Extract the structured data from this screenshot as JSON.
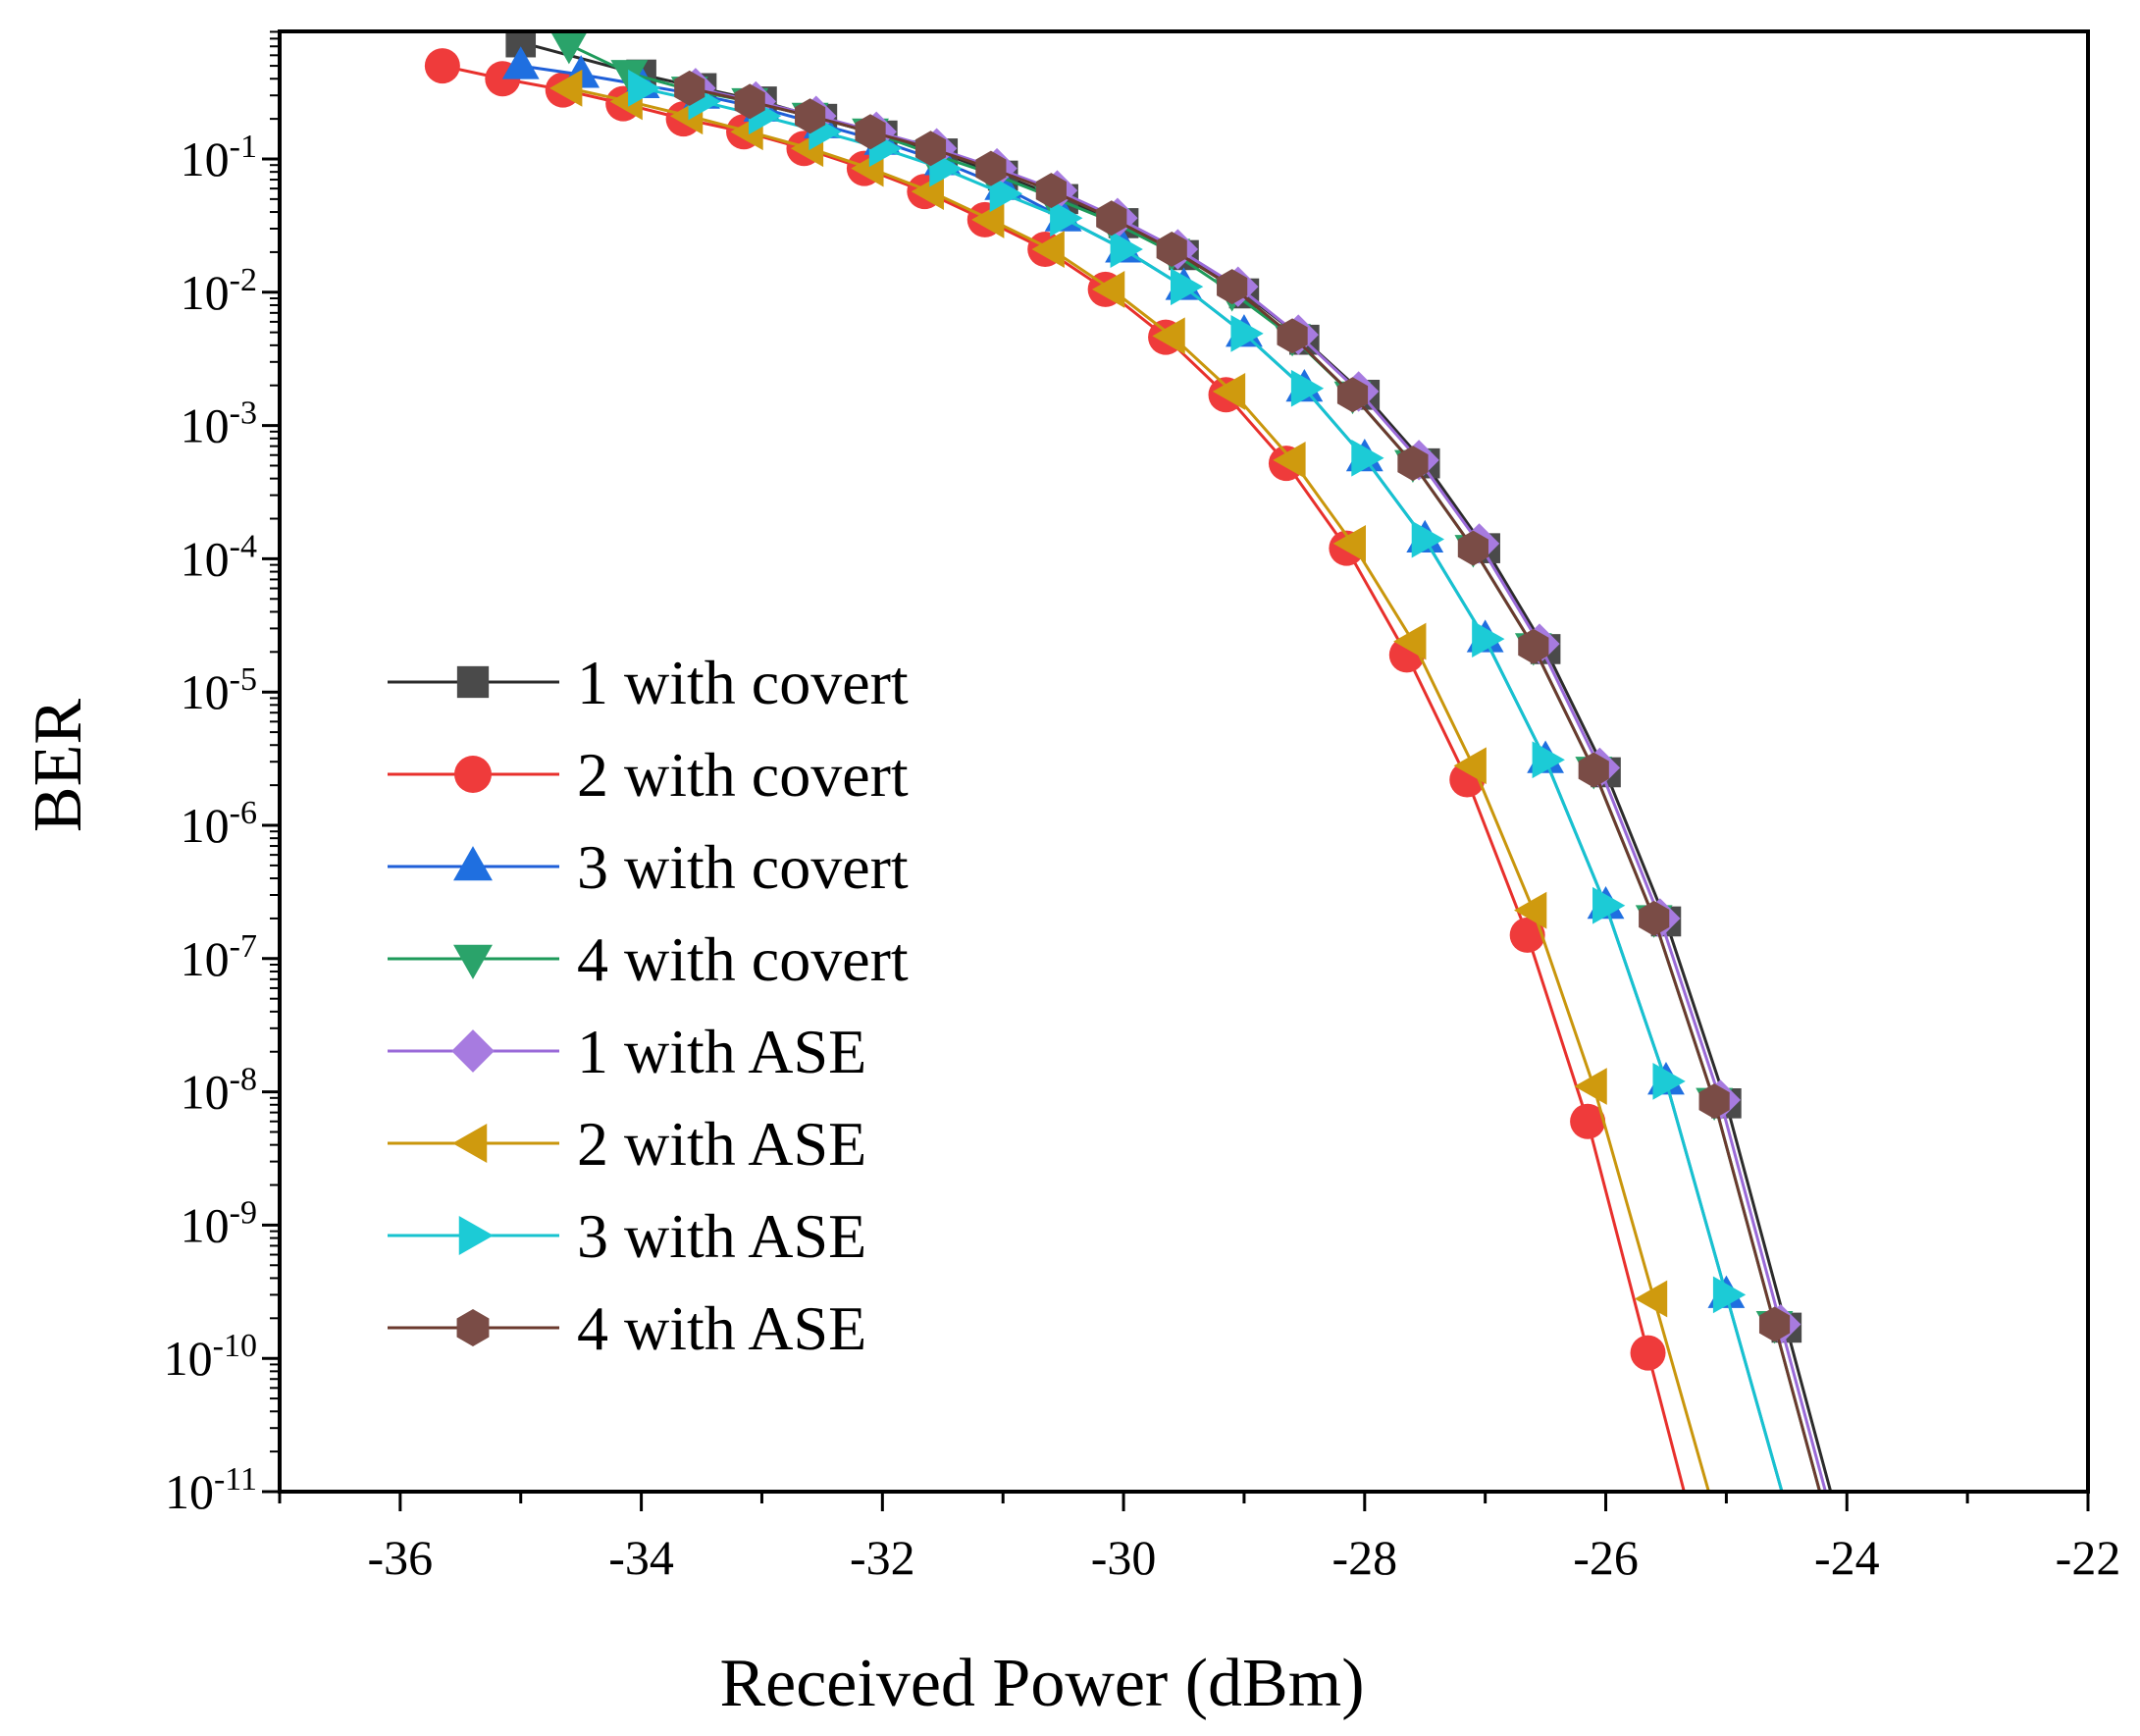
{
  "chart_data": {
    "type": "line",
    "title": "",
    "xlabel": "Received Power (dBm)",
    "ylabel": "BER",
    "xlim": [
      -37,
      -22
    ],
    "ylim_exponent": [
      -11,
      0
    ],
    "yscale": "log",
    "xticks": [
      -36,
      -34,
      -32,
      -30,
      -28,
      -26,
      -24,
      -22
    ],
    "xtick_labels": [
      "-36",
      "-34",
      "-32",
      "-30",
      "-28",
      "-26",
      "-24",
      "-22"
    ],
    "ytick_labels": [
      {
        "base": "10",
        "exp": "-1"
      },
      {
        "base": "10",
        "exp": "-2"
      },
      {
        "base": "10",
        "exp": "-3"
      },
      {
        "base": "10",
        "exp": "-4"
      },
      {
        "base": "10",
        "exp": "-5"
      },
      {
        "base": "10",
        "exp": "-6"
      },
      {
        "base": "10",
        "exp": "-7"
      },
      {
        "base": "10",
        "exp": "-8"
      },
      {
        "base": "10",
        "exp": "-9"
      },
      {
        "base": "10",
        "exp": "-10"
      },
      {
        "base": "10",
        "exp": "-11"
      }
    ],
    "legend_position": "left-center",
    "series": [
      {
        "name": "1 with covert",
        "color": "#2b2b2b",
        "marker": "square",
        "marker_color": "#4a4a4a",
        "x": [
          -35,
          -34,
          -33.5,
          -33,
          -32.5,
          -32,
          -31.5,
          -31,
          -30.5,
          -30,
          -29.5,
          -29,
          -28.5,
          -28,
          -27.5,
          -27,
          -26.5,
          -26,
          -25.5,
          -25,
          -24.5
        ],
        "y": [
          0.75,
          0.43,
          0.34,
          0.27,
          0.2,
          0.15,
          0.11,
          0.075,
          0.05,
          0.033,
          0.019,
          0.0098,
          0.0044,
          0.0017,
          0.00052,
          0.00012,
          2.1e-05,
          2.5e-06,
          1.9e-07,
          8.2e-09,
          1.7e-10
        ]
      },
      {
        "name": "2 with covert",
        "color": "#e8302c",
        "marker": "circle",
        "marker_color": "#ef3b3b",
        "x": [
          -35.65,
          -35.15,
          -34.65,
          -34.15,
          -33.65,
          -33.15,
          -32.65,
          -32.15,
          -31.65,
          -31.15,
          -30.65,
          -30.15,
          -29.65,
          -29.15,
          -28.65,
          -28.15,
          -27.65,
          -27.15,
          -26.65,
          -26.15,
          -25.65
        ],
        "y": [
          0.5,
          0.4,
          0.33,
          0.26,
          0.2,
          0.16,
          0.12,
          0.085,
          0.057,
          0.035,
          0.021,
          0.0105,
          0.0046,
          0.0017,
          0.00052,
          0.00012,
          1.9e-05,
          2.2e-06,
          1.5e-07,
          6e-09,
          1.1e-10
        ]
      },
      {
        "name": "3 with covert",
        "color": "#1f5fd8",
        "marker": "triangle-up",
        "marker_color": "#1f6fe0",
        "x": [
          -35,
          -34.5,
          -34,
          -33.5,
          -33,
          -32.5,
          -32,
          -31.5,
          -31,
          -30.5,
          -30,
          -29.5,
          -29,
          -28.5,
          -28,
          -27.5,
          -27,
          -26.5,
          -26,
          -25.5,
          -25
        ],
        "y": [
          0.5,
          0.43,
          0.36,
          0.3,
          0.24,
          0.18,
          0.135,
          0.095,
          0.062,
          0.036,
          0.021,
          0.011,
          0.0049,
          0.0019,
          0.00057,
          0.00014,
          2.5e-05,
          3.1e-06,
          2.5e-07,
          1.2e-08,
          3e-10
        ]
      },
      {
        "name": "4 with covert",
        "color": "#1e9a5a",
        "marker": "triangle-down",
        "marker_color": "#2aa36a",
        "x": [
          -34.6,
          -34.1,
          -33.6,
          -33.1,
          -32.6,
          -32.1,
          -31.6,
          -31.1,
          -30.6,
          -30.1,
          -29.6,
          -29.1,
          -28.6,
          -28.1,
          -27.6,
          -27.1,
          -26.6,
          -26.1,
          -25.6,
          -25.1,
          -24.6
        ],
        "y": [
          0.72,
          0.44,
          0.33,
          0.27,
          0.21,
          0.16,
          0.11,
          0.078,
          0.052,
          0.034,
          0.02,
          0.01,
          0.0046,
          0.0017,
          0.00052,
          0.00012,
          2.2e-05,
          2.6e-06,
          2e-07,
          8.5e-09,
          1.8e-10
        ]
      },
      {
        "name": "1 with ASE",
        "color": "#9a6ad8",
        "marker": "diamond",
        "marker_color": "#a77be0",
        "x": [
          -33.55,
          -33.05,
          -32.55,
          -32.05,
          -31.55,
          -31.05,
          -30.55,
          -30.05,
          -29.55,
          -29.05,
          -28.55,
          -28.05,
          -27.55,
          -27.05,
          -26.55,
          -26.05,
          -25.55,
          -25.05,
          -24.55
        ],
        "y": [
          0.34,
          0.27,
          0.21,
          0.16,
          0.12,
          0.085,
          0.058,
          0.036,
          0.021,
          0.011,
          0.0048,
          0.0018,
          0.00055,
          0.00013,
          2.3e-05,
          2.7e-06,
          2e-07,
          8.7e-09,
          1.8e-10
        ]
      },
      {
        "name": "2 with ASE",
        "color": "#c9960c",
        "marker": "triangle-left",
        "marker_color": "#cf9a0e",
        "x": [
          -34.6,
          -34.1,
          -33.6,
          -33.1,
          -32.6,
          -32.1,
          -31.6,
          -31.1,
          -30.6,
          -30.1,
          -29.6,
          -29.1,
          -28.6,
          -28.1,
          -27.6,
          -27.1,
          -26.6,
          -26.1,
          -25.6
        ],
        "y": [
          0.34,
          0.27,
          0.21,
          0.16,
          0.12,
          0.085,
          0.057,
          0.035,
          0.021,
          0.0105,
          0.0047,
          0.0018,
          0.00055,
          0.00013,
          2.4e-05,
          2.8e-06,
          2.3e-07,
          1.1e-08,
          2.8e-10
        ]
      },
      {
        "name": "3 with ASE",
        "color": "#17c3cf",
        "marker": "triangle-right",
        "marker_color": "#1ccbd6",
        "x": [
          -34,
          -33.5,
          -33,
          -32.5,
          -32,
          -31.5,
          -31,
          -30.5,
          -30,
          -29.5,
          -29,
          -28.5,
          -28,
          -27.5,
          -27,
          -26.5,
          -26,
          -25.5,
          -25
        ],
        "y": [
          0.34,
          0.27,
          0.21,
          0.16,
          0.12,
          0.085,
          0.055,
          0.036,
          0.021,
          0.011,
          0.0049,
          0.0019,
          0.00057,
          0.00014,
          2.5e-05,
          3.1e-06,
          2.5e-07,
          1.2e-08,
          3e-10
        ]
      },
      {
        "name": "4 with ASE",
        "color": "#6b3a2e",
        "marker": "hexagon",
        "marker_color": "#7a4c46",
        "x": [
          -33.6,
          -33.1,
          -32.6,
          -32.1,
          -31.6,
          -31.1,
          -30.6,
          -30.1,
          -29.6,
          -29.1,
          -28.6,
          -28.1,
          -27.6,
          -27.1,
          -26.6,
          -26.1,
          -25.6,
          -25.1,
          -24.6
        ],
        "y": [
          0.34,
          0.27,
          0.21,
          0.16,
          0.12,
          0.085,
          0.058,
          0.036,
          0.021,
          0.011,
          0.0047,
          0.0017,
          0.00052,
          0.00012,
          2.2e-05,
          2.6e-06,
          2e-07,
          8.5e-09,
          1.8e-10
        ]
      }
    ]
  }
}
